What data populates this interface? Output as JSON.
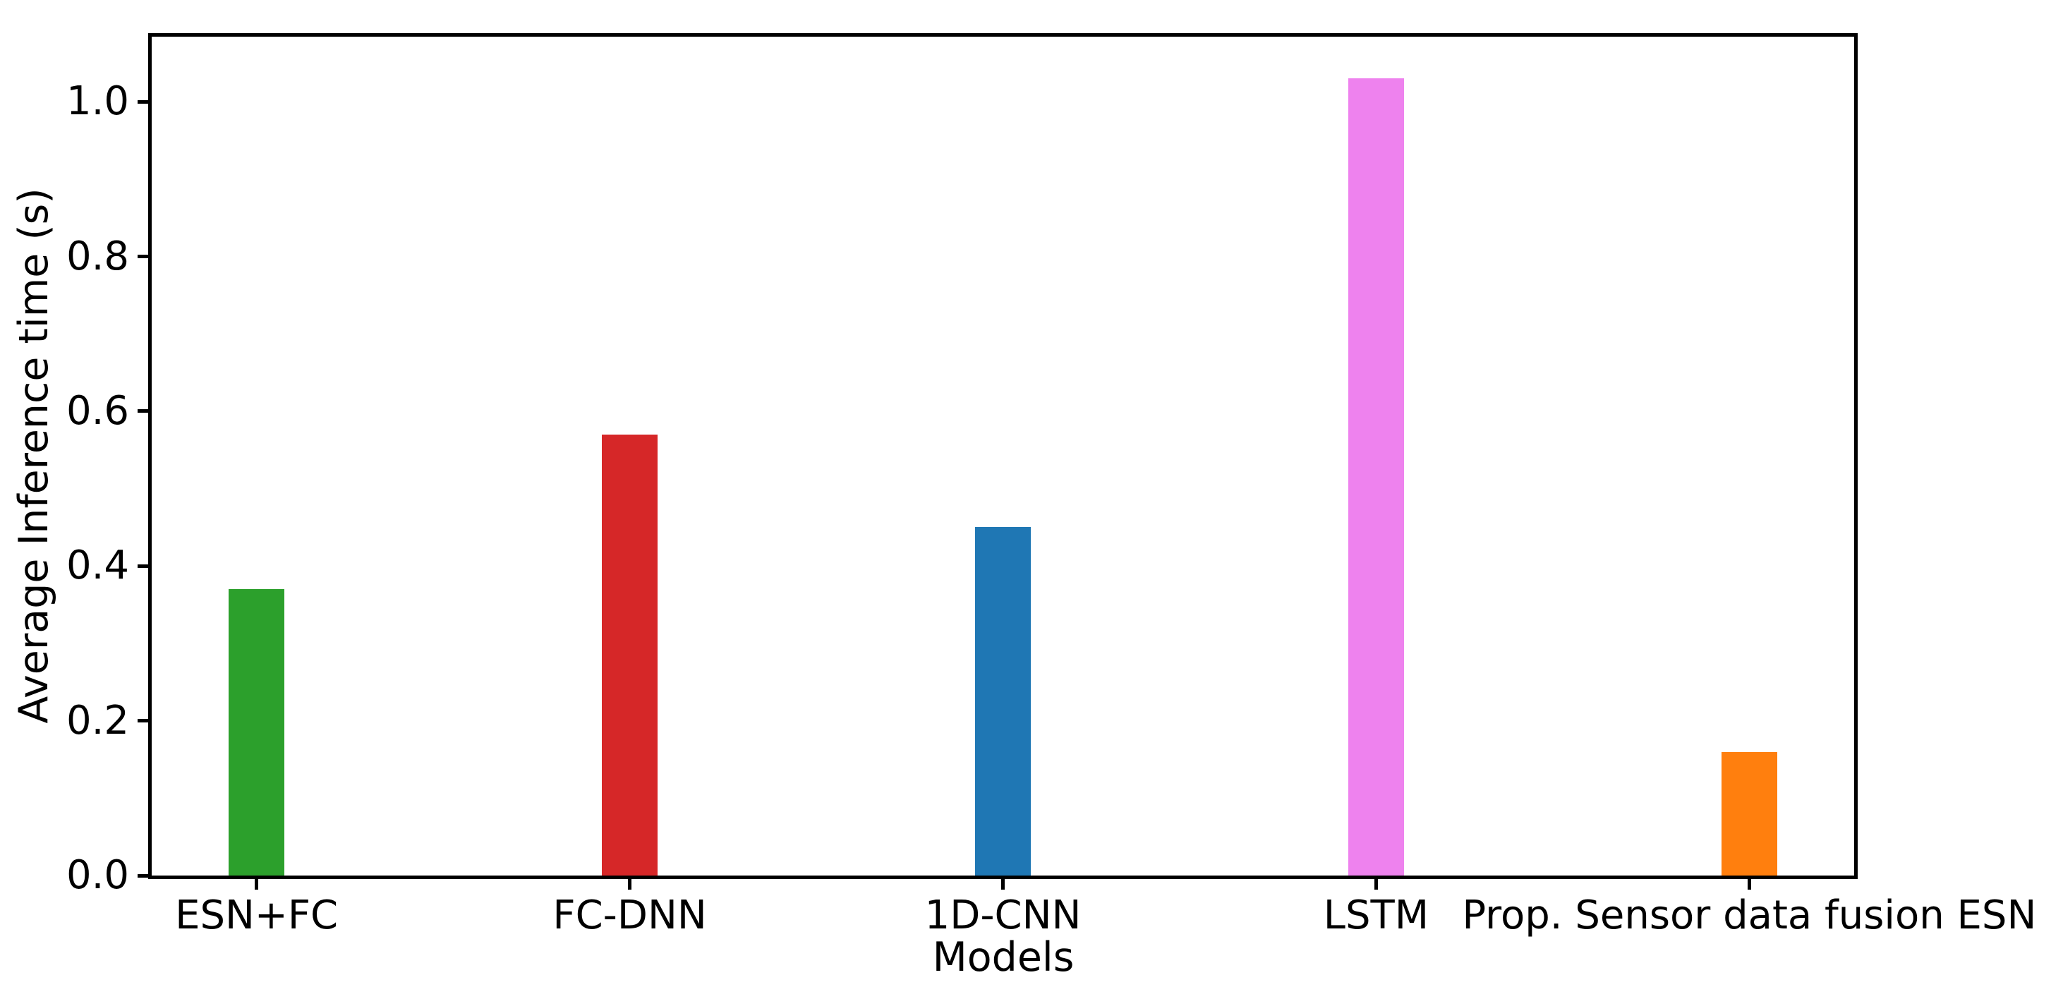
{
  "figure": {
    "background": "#ffffff"
  },
  "chart_data": {
    "type": "bar",
    "xlabel": "Models",
    "ylabel": "Average Inference time (s)",
    "categories": [
      "ESN+FC",
      "FC-DNN",
      "1D-CNN",
      "LSTM",
      "Prop. Sensor data fusion ESN"
    ],
    "values": [
      0.37,
      0.57,
      0.45,
      1.03,
      0.16
    ],
    "colors": [
      "#2ca02c",
      "#d62728",
      "#1f77b4",
      "#ee82ee",
      "#ff7f0e"
    ],
    "y_ticks": [
      0.0,
      0.2,
      0.4,
      0.6,
      0.8,
      1.0
    ],
    "y_tick_labels": [
      "0.0",
      "0.2",
      "0.4",
      "0.6",
      "0.8",
      "1.0"
    ],
    "ylim": [
      0,
      1.084
    ],
    "xlim": [
      -0.281,
      4.281
    ],
    "bar_width": 0.15,
    "grid": false,
    "legend": null,
    "axis_color": "#000000"
  }
}
